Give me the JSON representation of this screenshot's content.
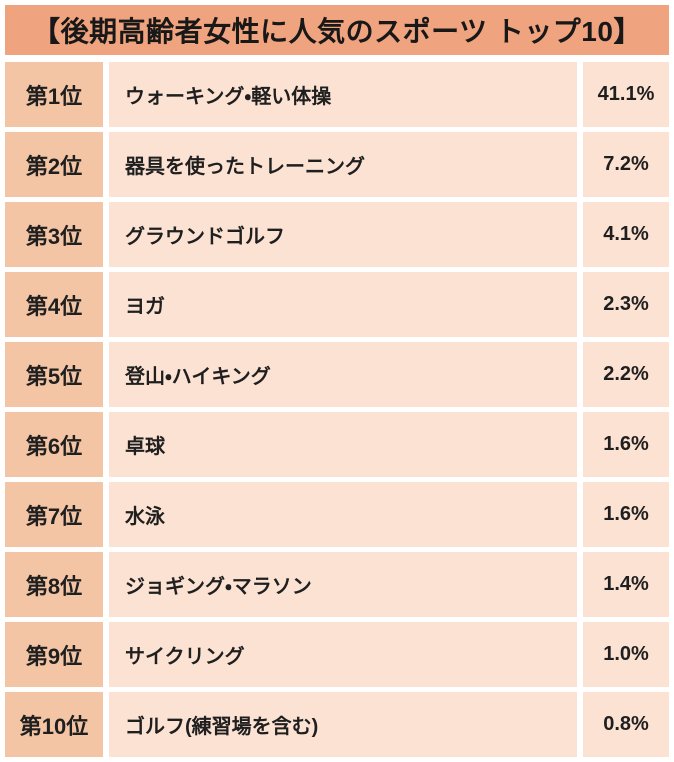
{
  "title": "【後期高齢者女性に人気のスポーツ トップ10】",
  "colors": {
    "page_bg": "#ffffff",
    "header_bg": "#efa37e",
    "rank_bg": "#f4c5a5",
    "cell_bg": "#fbe2d3",
    "text": "#1f1f1f"
  },
  "chart_data": {
    "type": "table",
    "title": "【後期高齢者女性に人気のスポーツ トップ10】",
    "rows": [
      {
        "rank": "第1位",
        "sport": "ウォーキング・軽い体操",
        "percent": "41.1%"
      },
      {
        "rank": "第2位",
        "sport": "器具を使ったトレーニング",
        "percent": "7.2%"
      },
      {
        "rank": "第3位",
        "sport": "グラウンドゴルフ",
        "percent": "4.1%"
      },
      {
        "rank": "第4位",
        "sport": "ヨガ",
        "percent": "2.3%"
      },
      {
        "rank": "第5位",
        "sport": "登山・ハイキング",
        "percent": "2.2%"
      },
      {
        "rank": "第6位",
        "sport": "卓球",
        "percent": "1.6%"
      },
      {
        "rank": "第7位",
        "sport": "水泳",
        "percent": "1.6%"
      },
      {
        "rank": "第8位",
        "sport": "ジョギング・マラソン",
        "percent": "1.4%"
      },
      {
        "rank": "第9位",
        "sport": "サイクリング",
        "percent": "1.0%"
      },
      {
        "rank": "第10位",
        "sport": "ゴルフ(練習場を含む)",
        "percent": "0.8%"
      }
    ],
    "values_numeric_percent": [
      41.1,
      7.2,
      4.1,
      2.3,
      2.2,
      1.6,
      1.6,
      1.4,
      1.0,
      0.8
    ]
  }
}
